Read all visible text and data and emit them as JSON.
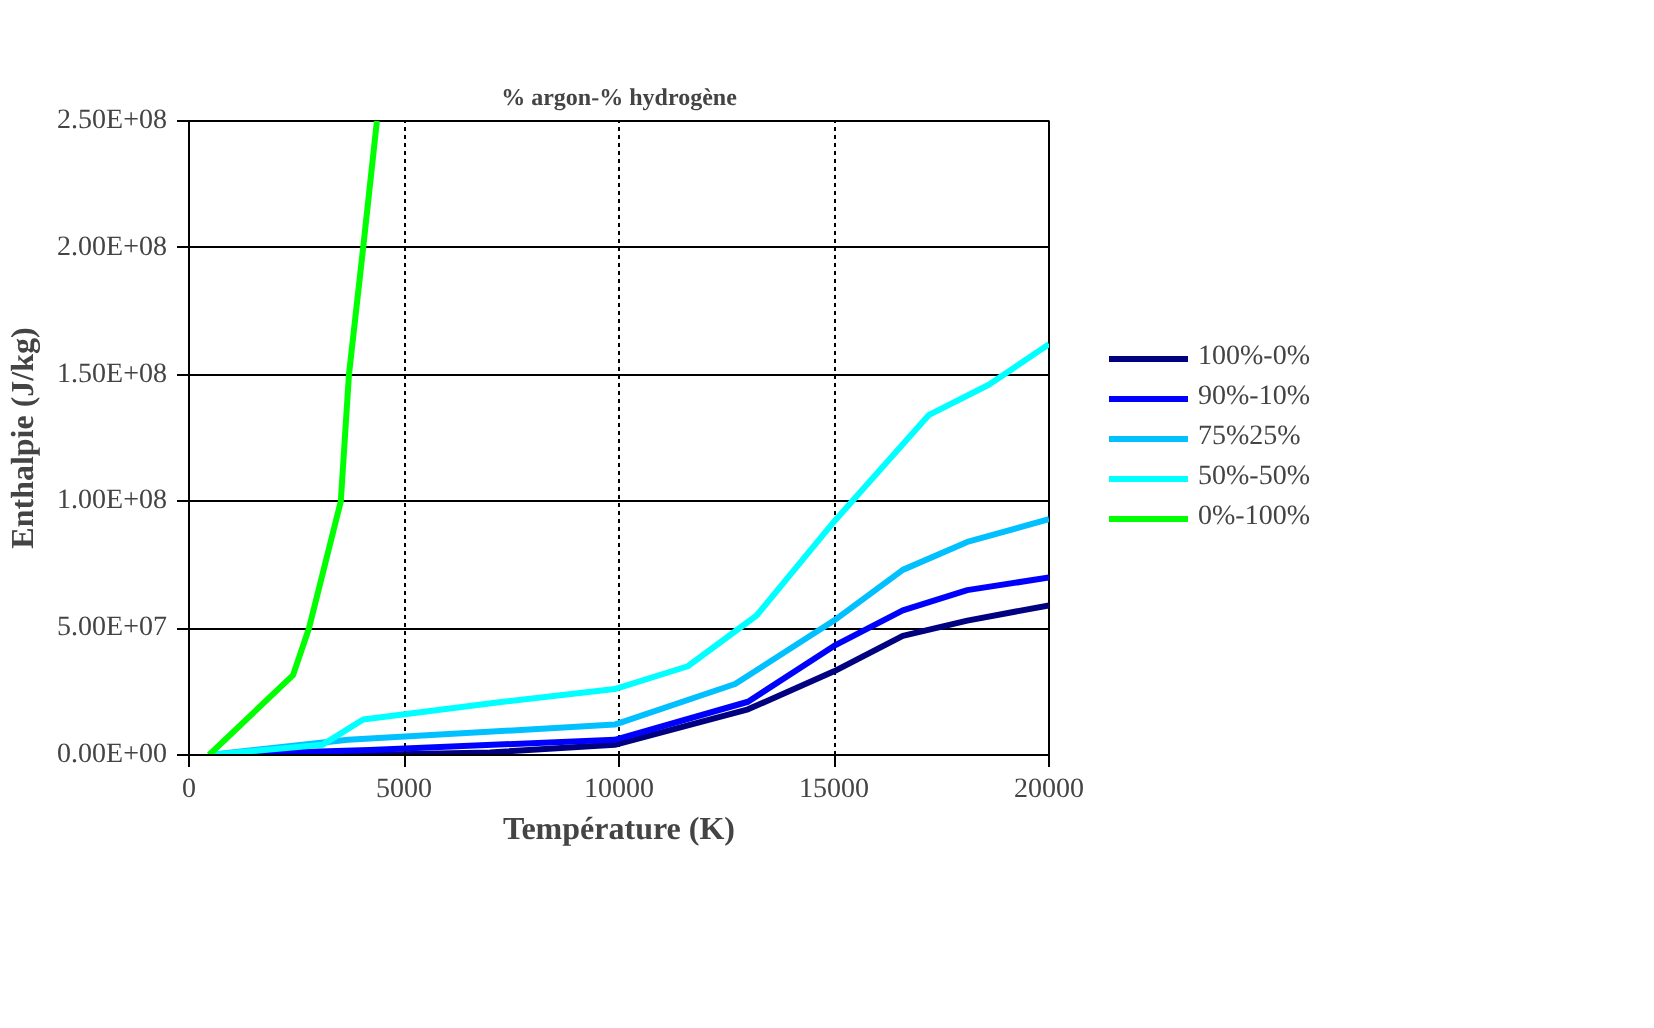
{
  "chart_data": {
    "type": "line",
    "title": "% argon-% hydrogène",
    "xlabel": "Température (K)",
    "ylabel": "Enthalpie (J/kg)",
    "xlim": [
      0,
      20000
    ],
    "xticks": [
      0,
      5000,
      10000,
      15000,
      20000
    ],
    "ylim": [
      0,
      250000000
    ],
    "yticks": [
      {
        "value": 0,
        "label": "0.00E+00"
      },
      {
        "value": 50000000,
        "label": "5.00E+07"
      },
      {
        "value": 100000000,
        "label": "1.00E+08"
      },
      {
        "value": 150000000,
        "label": "1.50E+08"
      },
      {
        "value": 200000000,
        "label": "2.00E+08"
      },
      {
        "value": 250000000,
        "label": "2.50E+08"
      }
    ],
    "grid": true,
    "legend": "right",
    "marker": "none",
    "line_style": "solid",
    "series": [
      {
        "name": "100%-0%",
        "color": "#000080",
        "x": [
          465,
          4000,
          7000,
          9900,
          13000,
          15000,
          16600,
          18100,
          20000
        ],
        "values": [
          0,
          0,
          1000000,
          4000000,
          18000000,
          33000000,
          47000000,
          53000000,
          59000000
        ]
      },
      {
        "name": "90%-10%",
        "color": "#0000ff",
        "x": [
          465,
          4200,
          9900,
          13000,
          15000,
          16600,
          18100,
          20000
        ],
        "values": [
          0,
          2000000,
          6000000,
          21000000,
          43000000,
          57000000,
          65000000,
          70000000
        ]
      },
      {
        "name": "75%25%",
        "color": "#00c0ff",
        "x": [
          465,
          3700,
          9900,
          12700,
          15000,
          16600,
          18100,
          20000
        ],
        "values": [
          0,
          6000000,
          12000000,
          28000000,
          53000000,
          73000000,
          84000000,
          93000000
        ]
      },
      {
        "name": "50%-50%",
        "color": "#00ffff",
        "x": [
          465,
          3100,
          4050,
          7300,
          9900,
          11600,
          13200,
          15000,
          17200,
          18600,
          20000
        ],
        "values": [
          0,
          4000000,
          14000000,
          21000000,
          26000000,
          35000000,
          55000000,
          92000000,
          134000000,
          146000000,
          162000000
        ]
      },
      {
        "name": "0%-100%",
        "color": "#00ff00",
        "x": [
          465,
          2420,
          2790,
          3530,
          3720,
          4050,
          4370
        ],
        "values": [
          0,
          31500000,
          50000000,
          100000000,
          150000000,
          200000000,
          250000000
        ]
      }
    ]
  }
}
